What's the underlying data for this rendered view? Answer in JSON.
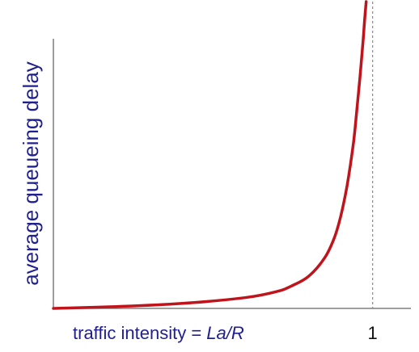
{
  "chart_data": {
    "type": "line",
    "xlabel_prefix": "traffic intensity = ",
    "xlabel_formula": "La/R",
    "ylabel": "average  queueing delay",
    "x_ticks": [
      "1"
    ],
    "xlim": [
      0,
      1.12
    ],
    "ylim": [
      0,
      1
    ],
    "reference_line": {
      "x": 1,
      "style": "dashed"
    },
    "series": [
      {
        "color": "#c0141c",
        "x": [
          0,
          0.2,
          0.4,
          0.6,
          0.7,
          0.75,
          0.8,
          0.85,
          0.88,
          0.9,
          0.92,
          0.94,
          0.95,
          0.96,
          0.97,
          0.975,
          0.98
        ],
        "y": [
          0,
          0.006,
          0.016,
          0.035,
          0.055,
          0.075,
          0.105,
          0.165,
          0.23,
          0.3,
          0.4,
          0.54,
          0.64,
          0.75,
          0.87,
          0.94,
          1.0
        ]
      }
    ]
  }
}
